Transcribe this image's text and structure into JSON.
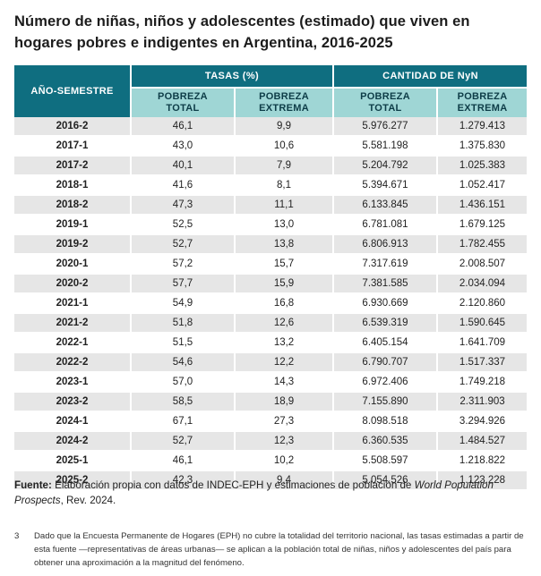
{
  "title": "Número de niñas, niños y adolescentes (estimado) que viven en hogares pobres e indigentes en Argentina, 2016-2025",
  "table": {
    "year_header": "AÑO-SEMESTRE",
    "groups": [
      "TASAS (%)",
      "CANTIDAD DE NyN"
    ],
    "subheaders": [
      {
        "line1": "POBREZA",
        "line2": "TOTAL"
      },
      {
        "line1": "POBREZA",
        "line2": "EXTREMA"
      },
      {
        "line1": "POBREZA",
        "line2": "TOTAL"
      },
      {
        "line1": "POBREZA",
        "line2": "EXTREMA"
      }
    ],
    "rows": [
      [
        "2016-2",
        "46,1",
        "9,9",
        "5.976.277",
        "1.279.413"
      ],
      [
        "2017-1",
        "43,0",
        "10,6",
        "5.581.198",
        "1.375.830"
      ],
      [
        "2017-2",
        "40,1",
        "7,9",
        "5.204.792",
        "1.025.383"
      ],
      [
        "2018-1",
        "41,6",
        "8,1",
        "5.394.671",
        "1.052.417"
      ],
      [
        "2018-2",
        "47,3",
        "11,1",
        "6.133.845",
        "1.436.151"
      ],
      [
        "2019-1",
        "52,5",
        "13,0",
        "6.781.081",
        "1.679.125"
      ],
      [
        "2019-2",
        "52,7",
        "13,8",
        "6.806.913",
        "1.782.455"
      ],
      [
        "2020-1",
        "57,2",
        "15,7",
        "7.317.619",
        "2.008.507"
      ],
      [
        "2020-2",
        "57,7",
        "15,9",
        "7.381.585",
        "2.034.094"
      ],
      [
        "2021-1",
        "54,9",
        "16,8",
        "6.930.669",
        "2.120.860"
      ],
      [
        "2021-2",
        "51,8",
        "12,6",
        "6.539.319",
        "1.590.645"
      ],
      [
        "2022-1",
        "51,5",
        "13,2",
        "6.405.154",
        "1.641.709"
      ],
      [
        "2022-2",
        "54,6",
        "12,2",
        "6.790.707",
        "1.517.337"
      ],
      [
        "2023-1",
        "57,0",
        "14,3",
        "6.972.406",
        "1.749.218"
      ],
      [
        "2023-2",
        "58,5",
        "18,9",
        "7.155.890",
        "2.311.903"
      ],
      [
        "2024-1",
        "67,1",
        "27,3",
        "8.098.518",
        "3.294.926"
      ],
      [
        "2024-2",
        "52,7",
        "12,3",
        "6.360.535",
        "1.484.527"
      ],
      [
        "2025-1",
        "46,1",
        "10,2",
        "5.508.597",
        "1.218.822"
      ],
      [
        "2025-2",
        "42,3",
        "9,4",
        "5.054.526",
        "1.123.228"
      ]
    ]
  },
  "source": {
    "label": "Fuente:",
    "text": "Elaboración propia con datos de INDEC-EPH y estimaciones de población de",
    "italic": "World Population Prospects",
    "suffix": ", Rev. 2024."
  },
  "footnote": {
    "number": "3",
    "text": "Dado que la Encuesta Permanente de Hogares (EPH) no cubre la totalidad del territorio nacional, las tasas estimadas a partir de esta fuente —representativas de áreas urbanas— se aplican a la población total de niñas, niños y adolescentes del país para obtener una aproximación a la magnitud del fenómeno."
  },
  "colors": {
    "header_dark": "#0f6e80",
    "header_light": "#9fd6d5",
    "row_shade": "#e6e6e6"
  }
}
